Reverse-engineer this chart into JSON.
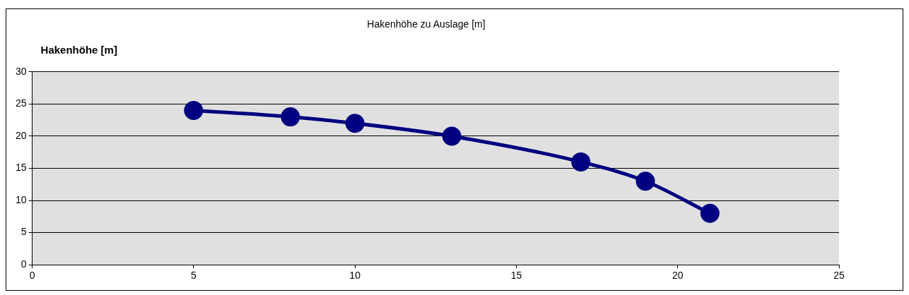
{
  "chart_data": {
    "type": "line",
    "title": "Hakenhöhe zu Auslage [m]",
    "ylabel": "Hakenhöhe [m]",
    "x": [
      5,
      8,
      10,
      13,
      17,
      19,
      21
    ],
    "series": [
      {
        "color": "#000080",
        "values": [
          24,
          23,
          22,
          20,
          16,
          13,
          8
        ]
      }
    ],
    "xlim": [
      0,
      25
    ],
    "xticks": [
      0,
      5,
      10,
      15,
      20,
      25
    ],
    "ylim": [
      0,
      30
    ],
    "yticks": [
      0,
      5,
      10,
      15,
      20,
      25,
      30
    ],
    "grid": "y",
    "legend": false,
    "marker": "circle",
    "line_style": "solid"
  }
}
